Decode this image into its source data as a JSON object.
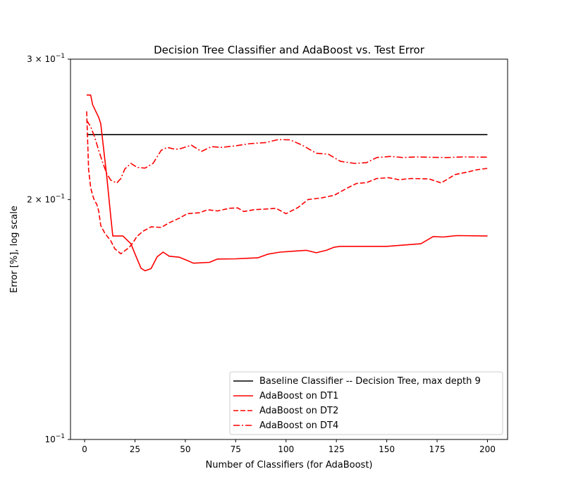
{
  "chart_data": {
    "type": "line",
    "title": "Decision Tree Classifier and AdaBoost vs. Test Error",
    "xlabel": "Number of Classifiers (for AdaBoost)",
    "ylabel": "Error [%], log scale",
    "xlim": [
      -7,
      210
    ],
    "ylim": [
      0.1,
      0.3
    ],
    "yscale": "log",
    "grid": false,
    "legend_position": "lower right",
    "x_ticks": [
      {
        "value": 0,
        "label": "0"
      },
      {
        "value": 25,
        "label": "25"
      },
      {
        "value": 50,
        "label": "50"
      },
      {
        "value": 75,
        "label": "75"
      },
      {
        "value": 100,
        "label": "100"
      },
      {
        "value": 125,
        "label": "125"
      },
      {
        "value": 150,
        "label": "150"
      },
      {
        "value": 175,
        "label": "175"
      },
      {
        "value": 200,
        "label": "200"
      }
    ],
    "y_ticks": [
      {
        "value": 0.1,
        "base": "10",
        "exp": "−1"
      },
      {
        "value": 0.2,
        "base": "2 × 10",
        "exp": "−1"
      },
      {
        "value": 0.3,
        "base": "3 × 10",
        "exp": "−1"
      }
    ],
    "series": [
      {
        "name": "Baseline Classifier -- Decision Tree, max depth 9",
        "color": "#000000",
        "dash": "solid",
        "points": [
          [
            1,
            0.2412
          ],
          [
            200,
            0.2412
          ]
        ]
      },
      {
        "name": "AdaBoost on DT1",
        "color": "#ff0000",
        "dash": "solid",
        "points": [
          [
            1,
            0.2705
          ],
          [
            3,
            0.2705
          ],
          [
            4,
            0.263
          ],
          [
            7,
            0.2535
          ],
          [
            8,
            0.249
          ],
          [
            11,
            0.214
          ],
          [
            13,
            0.1904
          ],
          [
            14,
            0.18
          ],
          [
            19,
            0.18
          ],
          [
            23,
            0.176
          ],
          [
            25,
            0.171
          ],
          [
            28,
            0.164
          ],
          [
            30,
            0.1628
          ],
          [
            33,
            0.1638
          ],
          [
            36,
            0.1695
          ],
          [
            39,
            0.1718
          ],
          [
            42,
            0.1698
          ],
          [
            47,
            0.1693
          ],
          [
            51,
            0.1677
          ],
          [
            54,
            0.1664
          ],
          [
            62,
            0.1668
          ],
          [
            66,
            0.1684
          ],
          [
            75,
            0.1685
          ],
          [
            81,
            0.1688
          ],
          [
            86,
            0.169
          ],
          [
            91,
            0.1708
          ],
          [
            97,
            0.1718
          ],
          [
            104,
            0.1723
          ],
          [
            110,
            0.1727
          ],
          [
            115,
            0.1715
          ],
          [
            120,
            0.1727
          ],
          [
            124,
            0.1743
          ],
          [
            127,
            0.1747
          ],
          [
            136,
            0.1747
          ],
          [
            150,
            0.1747
          ],
          [
            167,
            0.176
          ],
          [
            173,
            0.1797
          ],
          [
            178,
            0.1795
          ],
          [
            185,
            0.1802
          ],
          [
            200,
            0.18
          ]
        ]
      },
      {
        "name": "AdaBoost on DT2",
        "color": "#ff0000",
        "dash": "dashed",
        "points": [
          [
            1,
            0.258
          ],
          [
            2,
            0.218
          ],
          [
            3,
            0.207
          ],
          [
            4,
            0.2025
          ],
          [
            5,
            0.199
          ],
          [
            6,
            0.1975
          ],
          [
            7,
            0.1935
          ],
          [
            8,
            0.1855
          ],
          [
            10,
            0.1815
          ],
          [
            13,
            0.1775
          ],
          [
            15,
            0.1735
          ],
          [
            18,
            0.171
          ],
          [
            20,
            0.1725
          ],
          [
            22,
            0.174
          ],
          [
            24,
            0.1765
          ],
          [
            26,
            0.1798
          ],
          [
            29,
            0.1825
          ],
          [
            33,
            0.1848
          ],
          [
            38,
            0.1845
          ],
          [
            42,
            0.187
          ],
          [
            47,
            0.1895
          ],
          [
            51,
            0.192
          ],
          [
            57,
            0.1925
          ],
          [
            61,
            0.1942
          ],
          [
            66,
            0.1935
          ],
          [
            72,
            0.195
          ],
          [
            76,
            0.1952
          ],
          [
            79,
            0.1932
          ],
          [
            84,
            0.1942
          ],
          [
            89,
            0.1945
          ],
          [
            95,
            0.195
          ],
          [
            100,
            0.192
          ],
          [
            106,
            0.1955
          ],
          [
            111,
            0.2
          ],
          [
            118,
            0.201
          ],
          [
            124,
            0.2025
          ],
          [
            130,
            0.2065
          ],
          [
            135,
            0.2095
          ],
          [
            140,
            0.21
          ],
          [
            145,
            0.2125
          ],
          [
            151,
            0.213
          ],
          [
            156,
            0.2118
          ],
          [
            162,
            0.2125
          ],
          [
            171,
            0.2123
          ],
          [
            177,
            0.2098
          ],
          [
            184,
            0.215
          ],
          [
            190,
            0.2165
          ],
          [
            195,
            0.218
          ],
          [
            200,
            0.2188
          ]
        ]
      },
      {
        "name": "AdaBoost on DT4",
        "color": "#ff0000",
        "dash": "dashdot",
        "points": [
          [
            1,
            0.2515
          ],
          [
            3,
            0.2468
          ],
          [
            5,
            0.2395
          ],
          [
            7,
            0.2305
          ],
          [
            9,
            0.2225
          ],
          [
            11,
            0.2155
          ],
          [
            13,
            0.2115
          ],
          [
            16,
            0.2098
          ],
          [
            18,
            0.2125
          ],
          [
            20,
            0.2185
          ],
          [
            23,
            0.222
          ],
          [
            26,
            0.2195
          ],
          [
            30,
            0.219
          ],
          [
            34,
            0.222
          ],
          [
            38,
            0.2305
          ],
          [
            41,
            0.2325
          ],
          [
            45,
            0.2312
          ],
          [
            48,
            0.2318
          ],
          [
            53,
            0.234
          ],
          [
            58,
            0.2298
          ],
          [
            63,
            0.233
          ],
          [
            68,
            0.2325
          ],
          [
            75,
            0.2336
          ],
          [
            82,
            0.235
          ],
          [
            90,
            0.2358
          ],
          [
            96,
            0.2378
          ],
          [
            102,
            0.2376
          ],
          [
            108,
            0.234
          ],
          [
            115,
            0.2286
          ],
          [
            121,
            0.228
          ],
          [
            127,
            0.2233
          ],
          [
            134,
            0.222
          ],
          [
            140,
            0.2225
          ],
          [
            145,
            0.2258
          ],
          [
            152,
            0.2265
          ],
          [
            158,
            0.2258
          ],
          [
            165,
            0.2262
          ],
          [
            172,
            0.2259
          ],
          [
            180,
            0.2258
          ],
          [
            188,
            0.2262
          ],
          [
            200,
            0.226
          ]
        ]
      }
    ]
  }
}
